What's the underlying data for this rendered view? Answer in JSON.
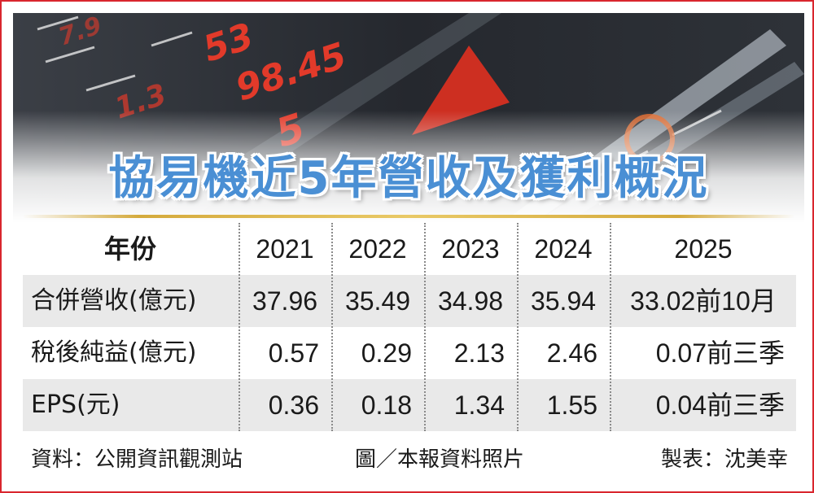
{
  "title": "協易機近5年營收及獲利概況",
  "table": {
    "header": [
      "年份",
      "2021",
      "2022",
      "2023",
      "2024",
      "2025"
    ],
    "rows": [
      {
        "label": "合併營收(億元)",
        "values": [
          "37.96",
          "35.49",
          "34.98",
          "35.94",
          "33.02前10月"
        ]
      },
      {
        "label": "稅後純益(億元)",
        "values": [
          "0.57",
          "0.29",
          "2.13",
          "2.46",
          "0.07前三季"
        ]
      },
      {
        "label": "EPS(元)",
        "values": [
          "0.36",
          "0.18",
          "1.34",
          "1.55",
          "0.04前三季"
        ]
      }
    ]
  },
  "footer": {
    "source": "資料：公開資訊觀測站",
    "photo_credit": "圖／本報資料照片",
    "maker": "製表：沈美幸"
  },
  "colors": {
    "border": "#d9262e",
    "title": "#4a8fd4",
    "stripe": "#e9e9e9",
    "gold": "#d4aa3c"
  },
  "icons": [
    "stock-ticker-photo"
  ]
}
